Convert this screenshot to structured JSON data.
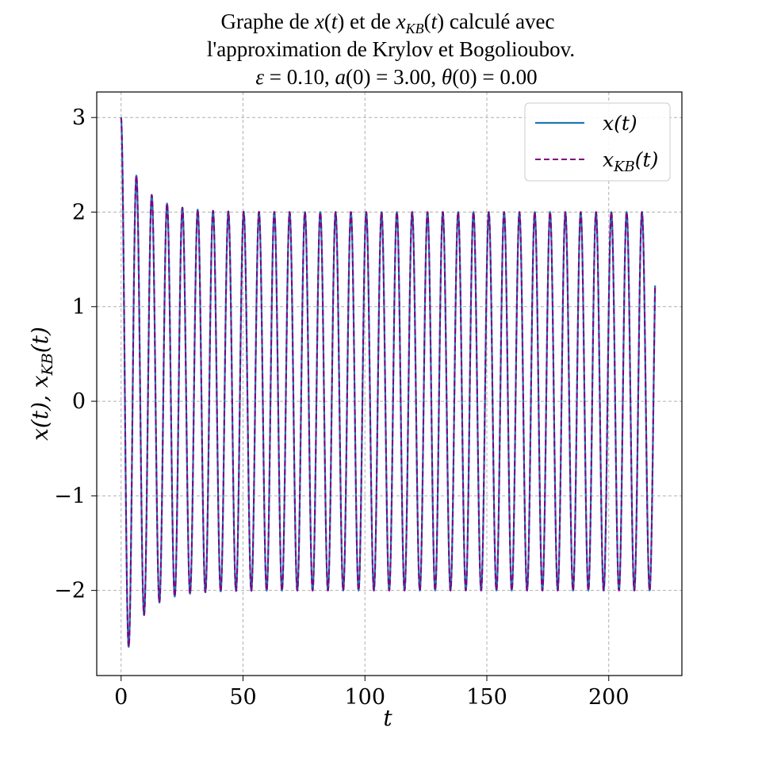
{
  "title_lines": [
    "Graphe de x(t) et de x_KB(t) calculé avec",
    "l'approximation de Krylov et Bogolioubov.",
    "ε = 0.10, a(0) = 3.00, θ(0) = 0.00"
  ],
  "chart_data": {
    "type": "line",
    "title": "Graphe de x(t) et de x_KB(t) calculé avec l'approximation de Krylov et Bogolioubov. ε = 0.10, a(0) = 3.00, θ(0) = 0.00",
    "xlabel": "t",
    "ylabel": "x(t), x_KB(t)",
    "xlim": [
      -10,
      230
    ],
    "ylim": [
      -2.9,
      3.27
    ],
    "x_ticks": [
      0,
      50,
      100,
      150,
      200
    ],
    "y_ticks": [
      3,
      2,
      1,
      0,
      -1,
      -2
    ],
    "x_tick_labels": [
      "0",
      "50",
      "100",
      "150",
      "200"
    ],
    "y_tick_labels": [
      "3",
      "2",
      "1",
      "0",
      "−1",
      "−2"
    ],
    "grid": true,
    "legend_position": "top-right",
    "t_range": [
      0,
      219
    ],
    "series": [
      {
        "name": "x(t)",
        "color": "#1f77b4",
        "style": "solid",
        "model": "x = a(t)·cos(t), a(t) decays from 3.00 to limit-cycle amplitude 2.00",
        "amplitude_start": 3.0,
        "amplitude_limit": 2.0,
        "epsilon": 0.1
      },
      {
        "name": "x_KB(t)",
        "color": "#800080",
        "style": "dashed",
        "model": "x_KB = a(t)·cos(t + θ(t)), Krylov–Bogolioubov approximation",
        "amplitude_start": 3.0,
        "amplitude_limit": 2.0,
        "epsilon": 0.1
      }
    ],
    "key_points": [
      {
        "t": 0,
        "x": 3.0
      },
      {
        "t": 3.1,
        "x": -2.6
      },
      {
        "t": 6.3,
        "x": 2.38
      },
      {
        "t": 9.4,
        "x": -2.25
      },
      {
        "t": 12.6,
        "x": 2.18
      },
      {
        "t": 15.7,
        "x": -2.12
      },
      {
        "t": 18.8,
        "x": 2.1
      },
      {
        "t": 25.1,
        "x": 2.05
      },
      {
        "t": 219,
        "x": 2.0
      }
    ]
  }
}
